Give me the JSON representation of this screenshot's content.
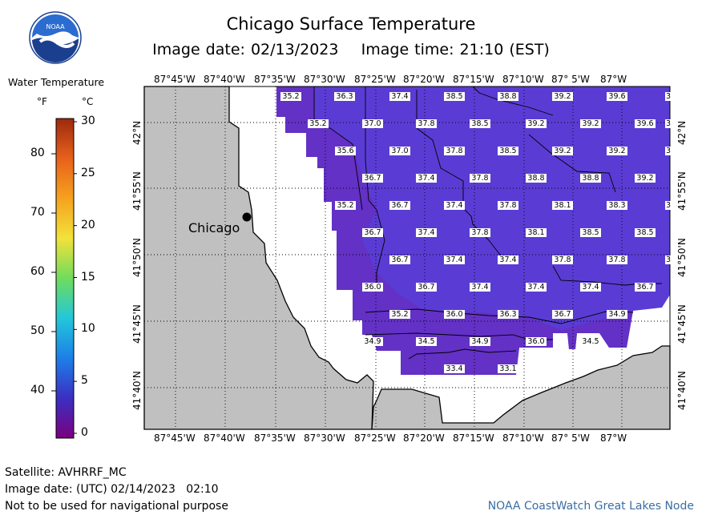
{
  "header": {
    "title": "Chicago Surface Temperature",
    "subtitle": "Image date: 02/13/2023    Image time: 21:10 (EST)",
    "logo_text": "NOAA",
    "logo_icon": "noaa-logo-icon"
  },
  "legend": {
    "title": "Water Temperature",
    "unit_f": "°F",
    "unit_c": "°C",
    "f_ticks": [
      "80",
      "70",
      "60",
      "50",
      "40"
    ],
    "c_ticks": [
      "30",
      "25",
      "20",
      "15",
      "10",
      "5",
      "0"
    ],
    "scale_colors": [
      "#7a007f",
      "#3b2fc2",
      "#1d7fe8",
      "#22c7d9",
      "#6fdc5c",
      "#f2e23a",
      "#f5a21f",
      "#e8611a",
      "#9b2a0e"
    ]
  },
  "map": {
    "lon_labels": [
      "87°45'W",
      "87°40'W",
      "87°35'W",
      "87°30'W",
      "87°25'W",
      "87°20'W",
      "87°15'W",
      "87°10'W",
      "87° 5'W",
      "87°W"
    ],
    "lat_labels": [
      "42°N",
      "41°55'N",
      "41°50'N",
      "41°45'N",
      "41°40'N"
    ],
    "city_label": "Chicago",
    "colors": {
      "land": "#c0c0c0",
      "water": "#5a3cd4",
      "coast": "#000000"
    },
    "temperatures": [
      [
        "35.2",
        "36.3",
        "37.4",
        "38.5",
        "38.8",
        "39.2",
        "39.6",
        "3"
      ],
      [
        "35.2",
        "37.0",
        "37.8",
        "38.5",
        "39.2",
        "39.2",
        "39.6",
        "3"
      ],
      [
        "35.6",
        "37.0",
        "37.8",
        "38.5",
        "39.2",
        "39.2",
        "3"
      ],
      [
        "36.7",
        "37.4",
        "37.8",
        "38.8",
        "38.8",
        "39.2"
      ],
      [
        "35.2",
        "36.7",
        "37.4",
        "37.8",
        "38.1",
        "38.3",
        "3"
      ],
      [
        "36.7",
        "37.4",
        "37.8",
        "38.1",
        "38.5",
        "38.5"
      ],
      [
        "36.7",
        "37.4",
        "37.4",
        "37.8",
        "37.8",
        "3"
      ],
      [
        "36.0",
        "36.7",
        "37.4",
        "37.4",
        "37.4",
        "36.7"
      ],
      [
        "35.2",
        "36.0",
        "36.3",
        "36.7",
        "34.9"
      ],
      [
        "34.9",
        "34.5",
        "34.9",
        "36.0",
        "34.5"
      ],
      [
        "33.4",
        "33.1"
      ]
    ]
  },
  "footer": {
    "satellite": "Satellite: AVHRRF_MC",
    "utc_date": "Image date: (UTC) 02/14/2023   02:10",
    "disclaimer": "Not to be used for navigational purpose",
    "credit": "NOAA CoastWatch Great Lakes Node"
  }
}
